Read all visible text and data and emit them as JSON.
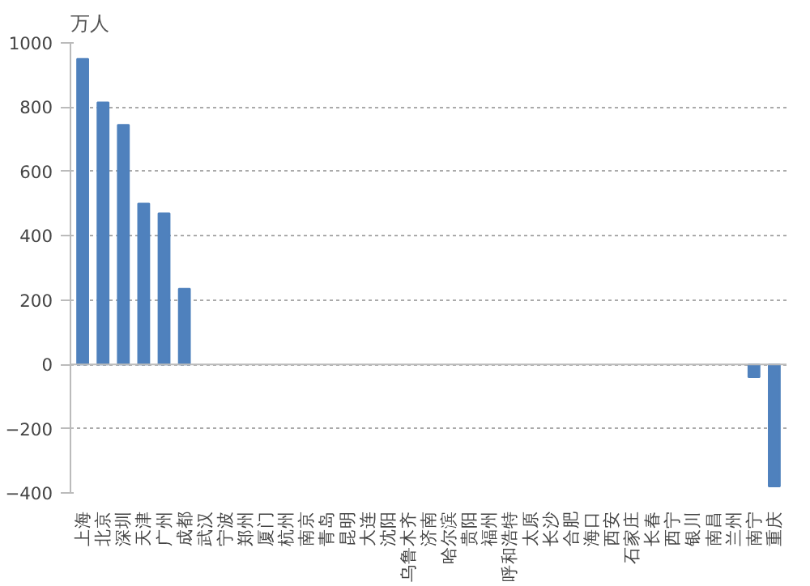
{
  "chart_data": {
    "type": "bar",
    "ylabel": "万人",
    "categories": [
      "上海",
      "北京",
      "深圳",
      "天津",
      "广州",
      "成都",
      "武汉",
      "宁波",
      "郑州",
      "厦门",
      "杭州",
      "南京",
      "青岛",
      "昆明",
      "大连",
      "沈阳",
      "乌鲁木齐",
      "济南",
      "哈尔滨",
      "贵阳",
      "福州",
      "呼和浩特",
      "太原",
      "长沙",
      "合肥",
      "海口",
      "西安",
      "石家庄",
      "长春",
      "西宁",
      "银川",
      "南昌",
      "兰州",
      "南宁",
      "重庆"
    ],
    "values": [
      950,
      815,
      745,
      500,
      470,
      235,
      null,
      null,
      null,
      null,
      null,
      null,
      null,
      null,
      null,
      null,
      null,
      null,
      null,
      null,
      null,
      null,
      null,
      null,
      null,
      null,
      null,
      null,
      null,
      null,
      null,
      null,
      null,
      -40,
      -380
    ],
    "color": "#4f81bd",
    "ylim": [
      -400,
      1000
    ],
    "yticks": [
      -400,
      -200,
      0,
      200,
      400,
      600,
      800,
      1000
    ],
    "grid": "y"
  }
}
